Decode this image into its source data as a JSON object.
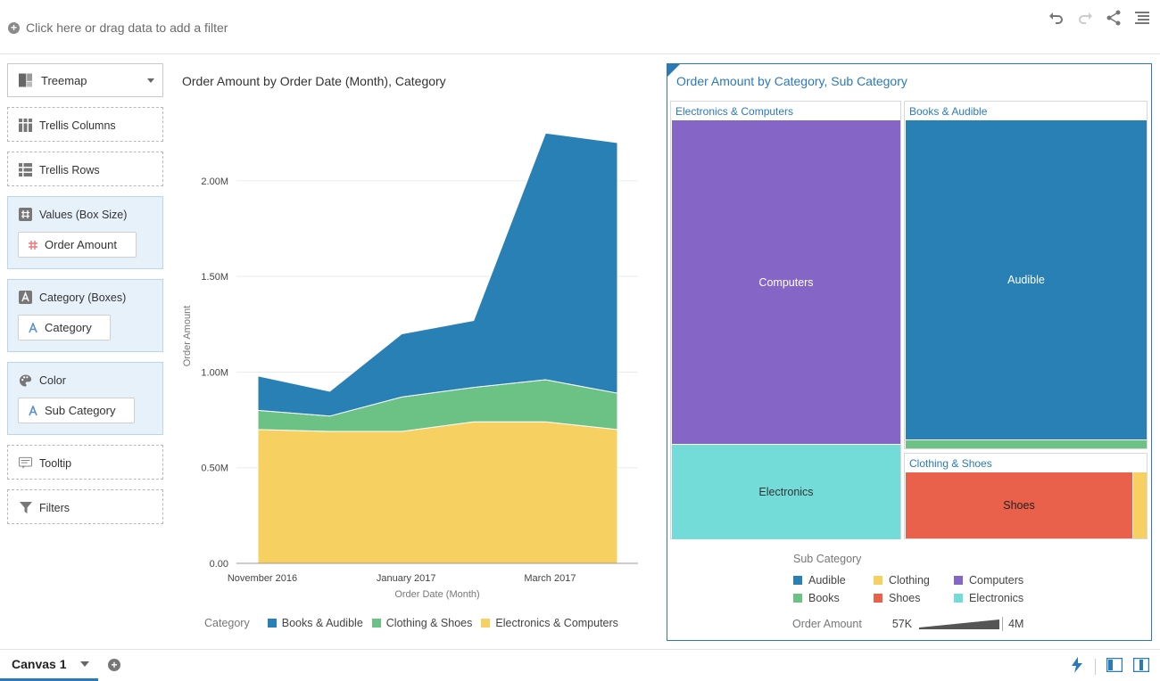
{
  "filter_bar": {
    "add_filter_text": "Click here or drag data to add a filter"
  },
  "grammar": {
    "viz_type": "Treemap",
    "trellis_columns": "Trellis Columns",
    "trellis_rows": "Trellis Rows",
    "values_label": "Values (Box Size)",
    "values_pill": "Order Amount",
    "category_label": "Category (Boxes)",
    "category_pill": "Category",
    "color_label": "Color",
    "color_pill": "Sub Category",
    "tooltip": "Tooltip",
    "filters": "Filters"
  },
  "left_chart": {
    "title": "Order Amount by Order Date (Month), Category",
    "ylabel": "Order Amount",
    "xlabel": "Order Date (Month)",
    "legend_title": "Category"
  },
  "chart_data": {
    "type": "area",
    "stacked": true,
    "title": "Order Amount by Order Date (Month), Category",
    "xlabel": "Order Date (Month)",
    "ylabel": "Order Amount",
    "ylim": [
      0,
      2.2
    ],
    "y_ticks": [
      "0.00",
      "0.50M",
      "1.00M",
      "1.50M",
      "2.00M"
    ],
    "y_tick_values": [
      0,
      0.5,
      1.0,
      1.5,
      2.0
    ],
    "x_tick_labels": [
      "November 2016",
      "January 2017",
      "March 2017"
    ],
    "x_tick_index": [
      0,
      2,
      4
    ],
    "x_count": 6,
    "grid": true,
    "legend": "bottom",
    "series": [
      {
        "name": "Electronics & Computers",
        "color": "#f6d060",
        "values": [
          0.7,
          0.69,
          0.69,
          0.74,
          0.74,
          0.7
        ]
      },
      {
        "name": "Clothing & Shoes",
        "color": "#6cc184",
        "values": [
          0.1,
          0.08,
          0.18,
          0.18,
          0.22,
          0.19
        ]
      },
      {
        "name": "Books & Audible",
        "color": "#2980b5",
        "values": [
          0.18,
          0.13,
          0.33,
          0.35,
          1.29,
          1.31
        ]
      }
    ]
  },
  "right_chart": {
    "title": "Order Amount by Category, Sub Category",
    "groups": {
      "electronics_computers": "Electronics & Computers",
      "books_audible": "Books & Audible",
      "clothing_shoes": "Clothing & Shoes"
    },
    "boxes": {
      "computers": "Computers",
      "electronics": "Electronics",
      "audible": "Audible",
      "shoes": "Shoes"
    },
    "legend_title": "Sub Category",
    "legend_items": [
      {
        "name": "Audible",
        "color": "#2980b5"
      },
      {
        "name": "Clothing",
        "color": "#f6d060"
      },
      {
        "name": "Computers",
        "color": "#8566c7"
      },
      {
        "name": "Books",
        "color": "#6cc184"
      },
      {
        "name": "Shoes",
        "color": "#e9614b"
      },
      {
        "name": "Electronics",
        "color": "#73dcd9"
      }
    ],
    "order_amount_label": "Order Amount",
    "order_amount_min": "57K",
    "order_amount_max": "4M"
  },
  "canvas": {
    "tab": "Canvas 1"
  }
}
